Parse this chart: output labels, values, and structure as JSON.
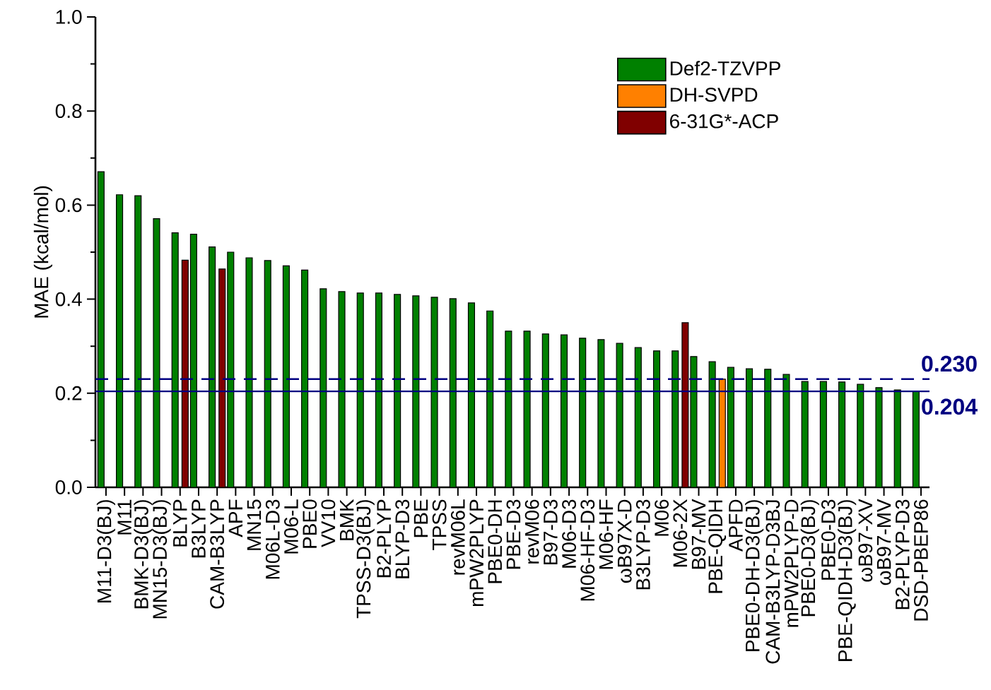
{
  "chart_data": {
    "type": "bar",
    "ylabel": "MAE (kcal/mol)",
    "categories": [
      "M11-D3(BJ)",
      "M11",
      "BMK-D3(BJ)",
      "MN15-D3(BJ)",
      "BLYP",
      "B3LYP",
      "CAM-B3LYP",
      "APF",
      "MN15",
      "M06L-D3",
      "M06-L",
      "PBE0",
      "VV10",
      "BMK",
      "TPSS-D3(BJ)",
      "B2-PLYP",
      "BLYP-D3",
      "PBE",
      "TPSS",
      "revM06L",
      "mPW2PLYP",
      "PBE0-DH",
      "PBE-D3",
      "revM06",
      "B97-D3",
      "M06-D3",
      "M06-HF-D3",
      "M06-HF",
      "ωB97X-D",
      "B3LYP-D3",
      "M06",
      "M06-2X",
      "B97-MV",
      "PBE-QIDH",
      "APFD",
      "PBE0-DH-D3(BJ)",
      "CAM-B3LYP-D3BJ",
      "mPW2PLYP-D",
      "PBE0-D3(BJ)",
      "PBE0-D3",
      "PBE-QIDH-D3(BJ)",
      "ωB97-XV",
      "ωB97-MV",
      "B2-PLYP-D3",
      "DSD-PBEP86"
    ],
    "series": [
      {
        "name": "Def2-TZVPP",
        "color": "#008000",
        "values": [
          0.671,
          0.622,
          0.62,
          0.571,
          0.541,
          0.538,
          0.511,
          0.5,
          0.488,
          0.482,
          0.471,
          0.462,
          0.422,
          0.416,
          0.413,
          0.413,
          0.41,
          0.407,
          0.404,
          0.401,
          0.392,
          0.375,
          0.332,
          0.332,
          0.326,
          0.324,
          0.317,
          0.314,
          0.306,
          0.297,
          0.29,
          0.29,
          0.278,
          0.267,
          0.255,
          0.252,
          0.251,
          0.24,
          0.225,
          0.225,
          0.224,
          0.219,
          0.212,
          0.207,
          0.204
        ]
      },
      {
        "name": "DH-SVPD",
        "color": "#ff8000",
        "values": [
          null,
          null,
          null,
          null,
          null,
          null,
          null,
          null,
          null,
          null,
          null,
          null,
          null,
          null,
          null,
          null,
          null,
          null,
          null,
          null,
          null,
          null,
          null,
          null,
          null,
          null,
          null,
          null,
          null,
          null,
          null,
          null,
          null,
          0.23,
          null,
          null,
          null,
          null,
          null,
          null,
          null,
          null,
          null,
          null,
          null
        ]
      },
      {
        "name": "6-31G*-ACP",
        "color": "#800000",
        "values": [
          null,
          null,
          null,
          null,
          0.483,
          null,
          0.464,
          null,
          null,
          null,
          null,
          null,
          null,
          null,
          null,
          null,
          null,
          null,
          null,
          null,
          null,
          null,
          null,
          null,
          null,
          null,
          null,
          null,
          null,
          null,
          null,
          0.35,
          null,
          null,
          null,
          null,
          null,
          null,
          null,
          null,
          null,
          null,
          null,
          null,
          null
        ]
      }
    ],
    "ylim": [
      0,
      1.0
    ],
    "yticks": [
      {
        "value": 0,
        "label": "0.0"
      },
      {
        "value": 0.2,
        "label": "0.2"
      },
      {
        "value": 0.4,
        "label": "0.4"
      },
      {
        "value": 0.6,
        "label": "0.6"
      },
      {
        "value": 0.8,
        "label": "0.8"
      },
      {
        "value": 1.0,
        "label": "1.0"
      }
    ],
    "ref_lines": [
      {
        "axis": "y",
        "value": 0.23,
        "label": "0.230",
        "color": "#000080",
        "line_style": "dashed"
      },
      {
        "axis": "y",
        "value": 0.204,
        "label": "0.204",
        "color": "#000080",
        "line_style": "solid"
      }
    ],
    "legend": "top right"
  }
}
